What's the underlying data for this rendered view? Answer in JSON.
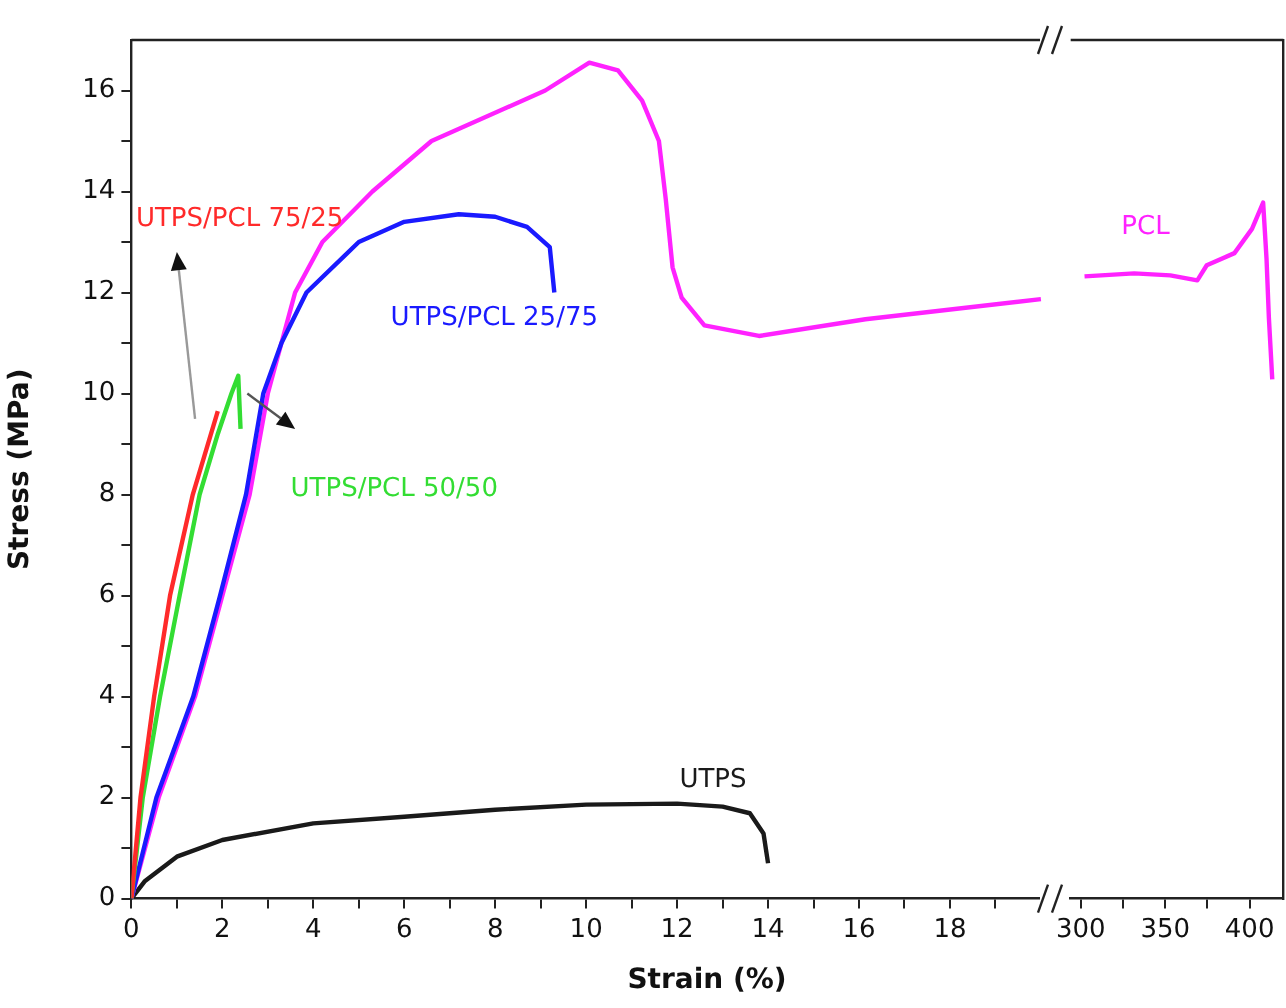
{
  "chart_data": [
    {
      "type": "line",
      "ylabel": "Stress (MPa)",
      "xlabel": "Strain (%)",
      "xlim": [
        0,
        20.2
      ],
      "ylim": [
        0,
        17
      ],
      "xticks": [
        0,
        {
          "value": 1,
          "label": null
        },
        2,
        {
          "value": 3,
          "label": null
        },
        4,
        {
          "value": 5,
          "label": null
        },
        6,
        {
          "value": 7,
          "label": null
        },
        8,
        {
          "value": 9,
          "label": null
        },
        10,
        {
          "value": 11,
          "label": null
        },
        12,
        {
          "value": 13,
          "label": null
        },
        14,
        {
          "value": 15,
          "label": null
        },
        16,
        {
          "value": 17,
          "label": null
        },
        18,
        {
          "value": 19,
          "label": null
        }
      ],
      "yticks": [
        0,
        {
          "value": 1,
          "label": null
        },
        2,
        {
          "value": 3,
          "label": null
        },
        4,
        {
          "value": 5,
          "label": null
        },
        6,
        {
          "value": 7,
          "label": null
        },
        8,
        {
          "value": 9,
          "label": null
        },
        10,
        {
          "value": 11,
          "label": null
        },
        12,
        {
          "value": 13,
          "label": null
        },
        14,
        {
          "value": 15,
          "label": null
        },
        16
      ],
      "series": [
        {
          "name": "UTPS/PCL 75/25",
          "color": "#ff2a2a",
          "x": [
            0,
            0.2,
            0.5,
            0.85,
            1.35,
            1.9
          ],
          "values": [
            0,
            2,
            4,
            6,
            8,
            9.65
          ]
        },
        {
          "name": "UTPS/PCL 50/50",
          "color": "#33dd33",
          "x": [
            0,
            0.25,
            0.63,
            1.06,
            1.5,
            1.9,
            2.2,
            2.35,
            2.4
          ],
          "values": [
            0,
            2,
            4,
            6,
            8,
            9.2,
            10,
            10.35,
            9.3
          ]
        },
        {
          "name": "UTPS/PCL 25/75",
          "color": "#1a1aff",
          "x": [
            0,
            0.55,
            1.36,
            1.95,
            2.52,
            2.9,
            3.3,
            3.85,
            5,
            6,
            7.2,
            8,
            8.7,
            9.2,
            9.3
          ],
          "values": [
            0,
            2,
            4,
            6,
            8,
            10,
            11,
            12,
            13,
            13.4,
            13.55,
            13.5,
            13.3,
            12.9,
            12
          ]
        },
        {
          "color": "#ff22ff",
          "x": [
            0,
            0.6,
            1.4,
            2,
            2.6,
            3,
            3.6,
            4.2,
            5.3,
            6.6,
            9.1,
            10.07,
            10.7,
            11.23,
            11.6,
            11.75,
            11.9,
            12.1,
            12.6,
            13.8,
            16.14,
            20
          ],
          "values": [
            0,
            2,
            4,
            6,
            8,
            10,
            12,
            13,
            14,
            15,
            16,
            16.55,
            16.4,
            15.8,
            15,
            13.85,
            12.5,
            11.9,
            11.35,
            11.14,
            11.47,
            11.87
          ]
        },
        {
          "name": "UTPS",
          "color": "#1a1a1a",
          "x": [
            0,
            0.3,
            1,
            2,
            4,
            6,
            8,
            10,
            12,
            13,
            13.6,
            13.9,
            14
          ],
          "values": [
            0,
            0.35,
            0.83,
            1.16,
            1.49,
            1.62,
            1.76,
            1.86,
            1.88,
            1.82,
            1.69,
            1.29,
            0.7
          ]
        }
      ]
    },
    {
      "type": "line",
      "xlim": [
        294,
        420
      ],
      "ylim": [
        0,
        17
      ],
      "tick_labels": "x",
      "xticks": [
        300,
        {
          "value": 325,
          "label": null
        },
        350,
        {
          "value": 375,
          "label": null
        },
        400
      ],
      "series": [
        {
          "name": "PCL",
          "color": "#ff22ff",
          "x": [
            302.2,
            331.6,
            353,
            369,
            374.6,
            391,
            401.4,
            408,
            410,
            411.4,
            413.4
          ],
          "values": [
            12.32,
            12.38,
            12.34,
            12.24,
            12.54,
            12.78,
            13.26,
            13.78,
            12.67,
            11.5,
            10.28
          ]
        }
      ]
    }
  ]
}
